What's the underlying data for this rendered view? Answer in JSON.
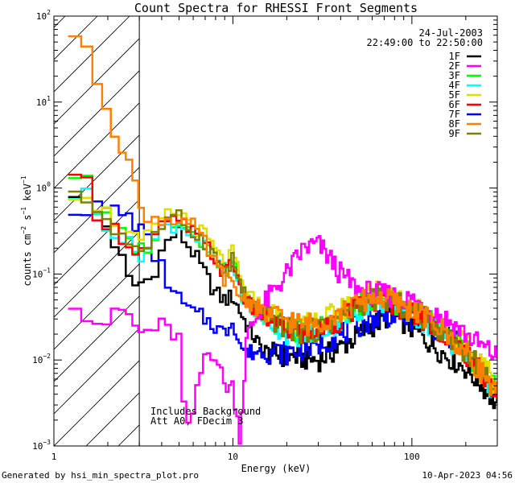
{
  "chart_data": {
    "type": "line",
    "title": "Count Spectra for RHESSI Front Segments",
    "xlabel": "Energy (keV)",
    "ylabel_text": "counts cm^-2 s^-1 keV^-1",
    "ylabel_parts": {
      "counts": "counts cm",
      "exp1": "−2",
      "s": " s",
      "exp2": "−1",
      "kev": " keV",
      "exp3": "−1"
    },
    "x_scale": "log",
    "y_scale": "log",
    "xlim": [
      1,
      300
    ],
    "ylim": [
      0.001,
      100
    ],
    "x_ticks": [
      {
        "value": 1,
        "label": "1"
      },
      {
        "value": 10,
        "label": "10"
      },
      {
        "value": 100,
        "label": "100"
      }
    ],
    "y_ticks": [
      {
        "value": 0.001,
        "base": "10",
        "exp": "−3"
      },
      {
        "value": 0.01,
        "base": "10",
        "exp": "−2"
      },
      {
        "value": 0.1,
        "base": "10",
        "exp": "−1"
      },
      {
        "value": 1,
        "base": "10",
        "exp": "0"
      },
      {
        "value": 10,
        "base": "10",
        "exp": "1"
      },
      {
        "value": 100,
        "base": "10",
        "exp": "2"
      }
    ],
    "date_label": "24-Jul-2003",
    "time_range": "22:49:00 to 22:50:00",
    "hatched_region_upper_keV": 3,
    "annotation_lines": [
      "Includes Background",
      "Att A0, FDecim 3"
    ],
    "footer_left": "Generated by hsi_min_spectra_plot.pro",
    "footer_right": "10-Apr-2023 04:56",
    "legend_position": "top-right",
    "series": [
      {
        "name": "1F",
        "color": "#000000",
        "base": "bB",
        "points": [
          [
            1.2,
            1.05
          ],
          [
            1.5,
            0.72
          ],
          [
            2,
            0.35
          ],
          [
            2.5,
            0.12
          ],
          [
            2.7,
            0.07
          ],
          [
            3.5,
            0.09
          ],
          [
            4,
            0.18
          ],
          [
            4.5,
            0.27
          ],
          [
            5,
            0.3
          ],
          [
            6,
            0.18
          ],
          [
            7,
            0.1
          ],
          [
            8,
            0.06
          ],
          [
            9,
            0.05
          ],
          [
            10,
            0.055
          ],
          [
            12,
            0.025
          ],
          [
            15,
            0.012
          ],
          [
            20,
            0.011
          ],
          [
            30,
            0.01
          ],
          [
            40,
            0.014
          ],
          [
            60,
            0.025
          ],
          [
            75,
            0.033
          ],
          [
            90,
            0.028
          ],
          [
            110,
            0.02
          ],
          [
            150,
            0.012
          ],
          [
            200,
            0.008
          ],
          [
            250,
            0.005
          ],
          [
            300,
            0.003
          ]
        ]
      },
      {
        "name": "2F",
        "color": "#ff00ff",
        "base": "m",
        "points": [
          [
            1.2,
            0.048
          ],
          [
            1.4,
            0.05
          ],
          [
            1.6,
            0.028
          ],
          [
            2,
            0.028
          ],
          [
            2.5,
            0.04
          ],
          [
            3,
            0.02
          ],
          [
            4,
            0.025
          ],
          [
            5,
            0.018
          ],
          [
            5.5,
            0.0012
          ],
          [
            6,
            0.0025
          ],
          [
            7,
            0.012
          ],
          [
            8,
            0.012
          ],
          [
            9,
            0.005
          ],
          [
            10,
            0.005
          ],
          [
            11,
            0.0012
          ],
          [
            12,
            0.02
          ],
          [
            15,
            0.045
          ],
          [
            20,
            0.1
          ],
          [
            25,
            0.2
          ],
          [
            30,
            0.22
          ],
          [
            35,
            0.15
          ],
          [
            40,
            0.1
          ],
          [
            50,
            0.065
          ],
          [
            60,
            0.06
          ],
          [
            80,
            0.055
          ],
          [
            100,
            0.05
          ],
          [
            150,
            0.032
          ],
          [
            200,
            0.02
          ],
          [
            250,
            0.014
          ],
          [
            300,
            0.011
          ]
        ]
      },
      {
        "name": "3F",
        "color": "#00ff00",
        "base": "a",
        "scale": 1.05,
        "p0": 1.45
      },
      {
        "name": "4F",
        "color": "#00ffff",
        "base": "a",
        "scale": 0.95,
        "p0": 0.85
      },
      {
        "name": "5F",
        "color": "#e0e000",
        "base": "a",
        "scale": 1.25,
        "p0": 0.9
      },
      {
        "name": "6F",
        "color": "#ff0000",
        "base": "a",
        "scale": 1.0,
        "p0": 1.15
      },
      {
        "name": "7F",
        "color": "#0000ff",
        "base": "bB",
        "points": [
          [
            1.2,
            0.58
          ],
          [
            1.5,
            0.58
          ],
          [
            2,
            0.58
          ],
          [
            2.5,
            0.5
          ],
          [
            3,
            0.35
          ],
          [
            3.5,
            0.2
          ],
          [
            4,
            0.12
          ],
          [
            4.5,
            0.07
          ],
          [
            5,
            0.05
          ],
          [
            6,
            0.035
          ],
          [
            7,
            0.03
          ],
          [
            8,
            0.025
          ],
          [
            9,
            0.02
          ],
          [
            10,
            0.03
          ],
          [
            11,
            0.015
          ],
          [
            12,
            0.012
          ],
          [
            15,
            0.013
          ],
          [
            20,
            0.012
          ],
          [
            30,
            0.015
          ],
          [
            40,
            0.02
          ],
          [
            60,
            0.03
          ],
          [
            80,
            0.035
          ],
          [
            100,
            0.03
          ],
          [
            130,
            0.025
          ],
          [
            180,
            0.016
          ],
          [
            220,
            0.01
          ],
          [
            280,
            0.005
          ]
        ]
      },
      {
        "name": "8F",
        "color": "#ff8000",
        "base": "o",
        "points": [
          [
            1.05,
            80
          ],
          [
            1.25,
            72
          ],
          [
            1.45,
            45
          ],
          [
            1.65,
            25
          ],
          [
            1.9,
            12
          ],
          [
            2.1,
            6
          ],
          [
            2.4,
            3.2
          ],
          [
            2.7,
            1.8
          ],
          [
            3,
            0.6
          ],
          [
            3.5,
            0.45
          ],
          [
            4,
            0.42
          ],
          [
            4.5,
            0.45
          ],
          [
            5,
            0.45
          ],
          [
            6,
            0.35
          ],
          [
            7,
            0.22
          ],
          [
            8,
            0.13
          ],
          [
            9,
            0.09
          ],
          [
            10,
            0.07
          ],
          [
            11,
            0.055
          ],
          [
            12,
            0.05
          ],
          [
            15,
            0.035
          ],
          [
            20,
            0.03
          ],
          [
            25,
            0.025
          ],
          [
            30,
            0.028
          ],
          [
            40,
            0.035
          ],
          [
            50,
            0.045
          ],
          [
            60,
            0.055
          ],
          [
            75,
            0.05
          ],
          [
            90,
            0.042
          ],
          [
            110,
            0.035
          ],
          [
            150,
            0.022
          ],
          [
            200,
            0.012
          ],
          [
            250,
            0.007
          ],
          [
            300,
            0.004
          ]
        ]
      },
      {
        "name": "9F",
        "color": "#808000",
        "base": "a",
        "scale": 1.05,
        "p0": 0.75
      }
    ],
    "generic_shape": [
      [
        1.2,
        1.05
      ],
      [
        1.5,
        0.7
      ],
      [
        2,
        0.4
      ],
      [
        2.5,
        0.25
      ],
      [
        3,
        0.18
      ],
      [
        3.5,
        0.22
      ],
      [
        4,
        0.35
      ],
      [
        5,
        0.42
      ],
      [
        6,
        0.3
      ],
      [
        7,
        0.22
      ],
      [
        8,
        0.15
      ],
      [
        9,
        0.1
      ],
      [
        10,
        0.14
      ],
      [
        11,
        0.07
      ],
      [
        12,
        0.045
      ],
      [
        15,
        0.032
      ],
      [
        20,
        0.022
      ],
      [
        25,
        0.02
      ],
      [
        30,
        0.022
      ],
      [
        40,
        0.03
      ],
      [
        50,
        0.04
      ],
      [
        60,
        0.05
      ],
      [
        70,
        0.05
      ],
      [
        80,
        0.045
      ],
      [
        100,
        0.035
      ],
      [
        130,
        0.026
      ],
      [
        160,
        0.018
      ],
      [
        200,
        0.012
      ],
      [
        250,
        0.007
      ],
      [
        300,
        0.004
      ]
    ]
  }
}
